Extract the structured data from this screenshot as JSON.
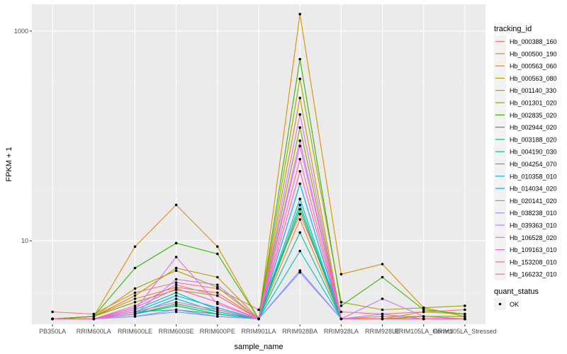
{
  "chart_data": {
    "type": "line",
    "title": "",
    "xlabel": "sample_name",
    "ylabel": "FPKM + 1",
    "yscale": "log10",
    "ylim": [
      1.6,
      1800
    ],
    "yticks": [
      10,
      1000
    ],
    "ytick_labels": [
      "10",
      "1000"
    ],
    "grid": true,
    "legend_position": "right",
    "categories": [
      "PB350LA",
      "RRIM600LA",
      "RRIM600LE",
      "RRIM600SE",
      "RRIM600PE",
      "RRIM901LA",
      "RRIM928BA",
      "RRIM928LA",
      "RRIM928LE",
      "RRIM105LA_Control",
      "RRIM105LA_Stressed"
    ],
    "legend_title": "tracking_id",
    "series": [
      {
        "name": "Hb_000388_160",
        "color": "#F8766D",
        "values": [
          2.1,
          2.0,
          3.2,
          4.0,
          3.5,
          2.2,
          18.0,
          2.1,
          2.0,
          2.1,
          2.2
        ]
      },
      {
        "name": "Hb_000500_190",
        "color": "#EA8331",
        "values": [
          1.8,
          1.9,
          2.8,
          3.6,
          3.2,
          1.8,
          16.0,
          1.8,
          1.9,
          1.9,
          1.8
        ]
      },
      {
        "name": "Hb_000563_060",
        "color": "#D89000",
        "values": [
          1.8,
          1.9,
          8.8,
          22.0,
          8.8,
          1.8,
          1450.0,
          4.8,
          6.0,
          2.3,
          1.9
        ]
      },
      {
        "name": "Hb_000563_080",
        "color": "#C09B00",
        "values": [
          1.8,
          1.9,
          3.0,
          5.5,
          4.5,
          1.8,
          230.0,
          1.8,
          1.8,
          2.1,
          2.0
        ]
      },
      {
        "name": "Hb_001140_330",
        "color": "#A3A500",
        "values": [
          1.8,
          1.9,
          3.5,
          5.2,
          3.6,
          1.8,
          350.0,
          2.6,
          2.2,
          2.3,
          2.4
        ]
      },
      {
        "name": "Hb_001301_020",
        "color": "#7CAE00",
        "values": [
          1.8,
          1.9,
          2.6,
          3.4,
          3.0,
          1.8,
          120.0,
          1.8,
          1.8,
          1.9,
          1.9
        ]
      },
      {
        "name": "Hb_002835_020",
        "color": "#39B600",
        "values": [
          1.8,
          1.9,
          5.5,
          9.5,
          7.5,
          1.8,
          540.0,
          2.4,
          4.5,
          2.2,
          2.0
        ]
      },
      {
        "name": "Hb_002944_020",
        "color": "#00BB4E",
        "values": [
          1.8,
          1.8,
          2.0,
          2.4,
          2.0,
          1.8,
          20.0,
          1.8,
          1.8,
          1.8,
          1.8
        ]
      },
      {
        "name": "Hb_003188_020",
        "color": "#00BF7D",
        "values": [
          1.8,
          1.8,
          2.1,
          2.2,
          2.0,
          1.8,
          22.0,
          1.8,
          1.8,
          1.8,
          1.8
        ]
      },
      {
        "name": "Hb_004190_030",
        "color": "#00C1A3",
        "values": [
          1.8,
          1.8,
          2.0,
          2.5,
          2.1,
          1.8,
          12.0,
          1.8,
          1.8,
          1.8,
          1.8
        ]
      },
      {
        "name": "Hb_004254_070",
        "color": "#00BFC4",
        "values": [
          1.8,
          1.8,
          2.2,
          3.2,
          2.2,
          1.8,
          8.0,
          1.8,
          1.8,
          1.8,
          1.8
        ]
      },
      {
        "name": "Hb_010358_010",
        "color": "#00B8E5",
        "values": [
          1.8,
          1.8,
          2.1,
          3.0,
          2.3,
          1.8,
          25.0,
          1.8,
          1.8,
          1.8,
          1.8
        ]
      },
      {
        "name": "Hb_014034_020",
        "color": "#00ABFD",
        "values": [
          1.8,
          1.8,
          2.0,
          2.8,
          2.1,
          1.8,
          35.0,
          1.8,
          1.8,
          1.8,
          1.8
        ]
      },
      {
        "name": "Hb_020141_020",
        "color": "#619CFF",
        "values": [
          1.8,
          1.8,
          1.9,
          2.1,
          1.9,
          1.8,
          5.2,
          1.8,
          1.8,
          1.8,
          1.8
        ]
      },
      {
        "name": "Hb_038238_010",
        "color": "#A58AFF",
        "values": [
          1.8,
          1.8,
          1.9,
          2.2,
          1.9,
          1.8,
          5.0,
          1.8,
          2.0,
          1.8,
          1.8
        ]
      },
      {
        "name": "Hb_039363_010",
        "color": "#C77CFF",
        "values": [
          1.8,
          1.8,
          2.0,
          4.3,
          3.8,
          1.8,
          80.0,
          1.8,
          2.8,
          1.9,
          1.8
        ]
      },
      {
        "name": "Hb_106528_020",
        "color": "#E76BF3",
        "values": [
          1.8,
          1.8,
          2.2,
          7.0,
          2.5,
          1.8,
          160.0,
          1.8,
          1.8,
          1.8,
          1.8
        ]
      },
      {
        "name": "Hb_109163_010",
        "color": "#FA62DB",
        "values": [
          1.8,
          1.8,
          2.4,
          3.8,
          3.0,
          1.8,
          90.0,
          1.8,
          1.8,
          1.8,
          1.8
        ]
      },
      {
        "name": "Hb_153208_010",
        "color": "#FF62BC",
        "values": [
          1.8,
          1.8,
          2.3,
          3.5,
          2.6,
          1.8,
          46.0,
          1.8,
          1.8,
          1.8,
          1.8
        ]
      },
      {
        "name": "Hb_166232_010",
        "color": "#FF6C91",
        "values": [
          1.8,
          1.8,
          2.1,
          2.6,
          2.2,
          1.8,
          60.0,
          1.8,
          1.8,
          1.8,
          1.8
        ]
      }
    ],
    "point_legend": {
      "title": "quant_status",
      "entries": [
        "OK"
      ]
    }
  }
}
